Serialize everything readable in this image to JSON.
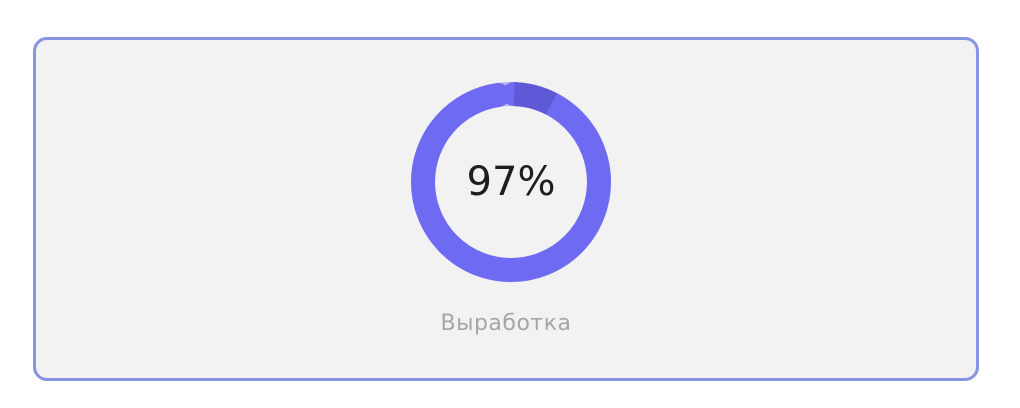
{
  "metric": {
    "value_text": "97%",
    "value_fraction": 0.97,
    "label": "Выработка"
  },
  "colors": {
    "progress": "#6e6af2",
    "progress_end": "#5f59d8",
    "track": "#b7b4f5",
    "card_border": "#8793e3",
    "card_background": "#f2f2f3"
  }
}
